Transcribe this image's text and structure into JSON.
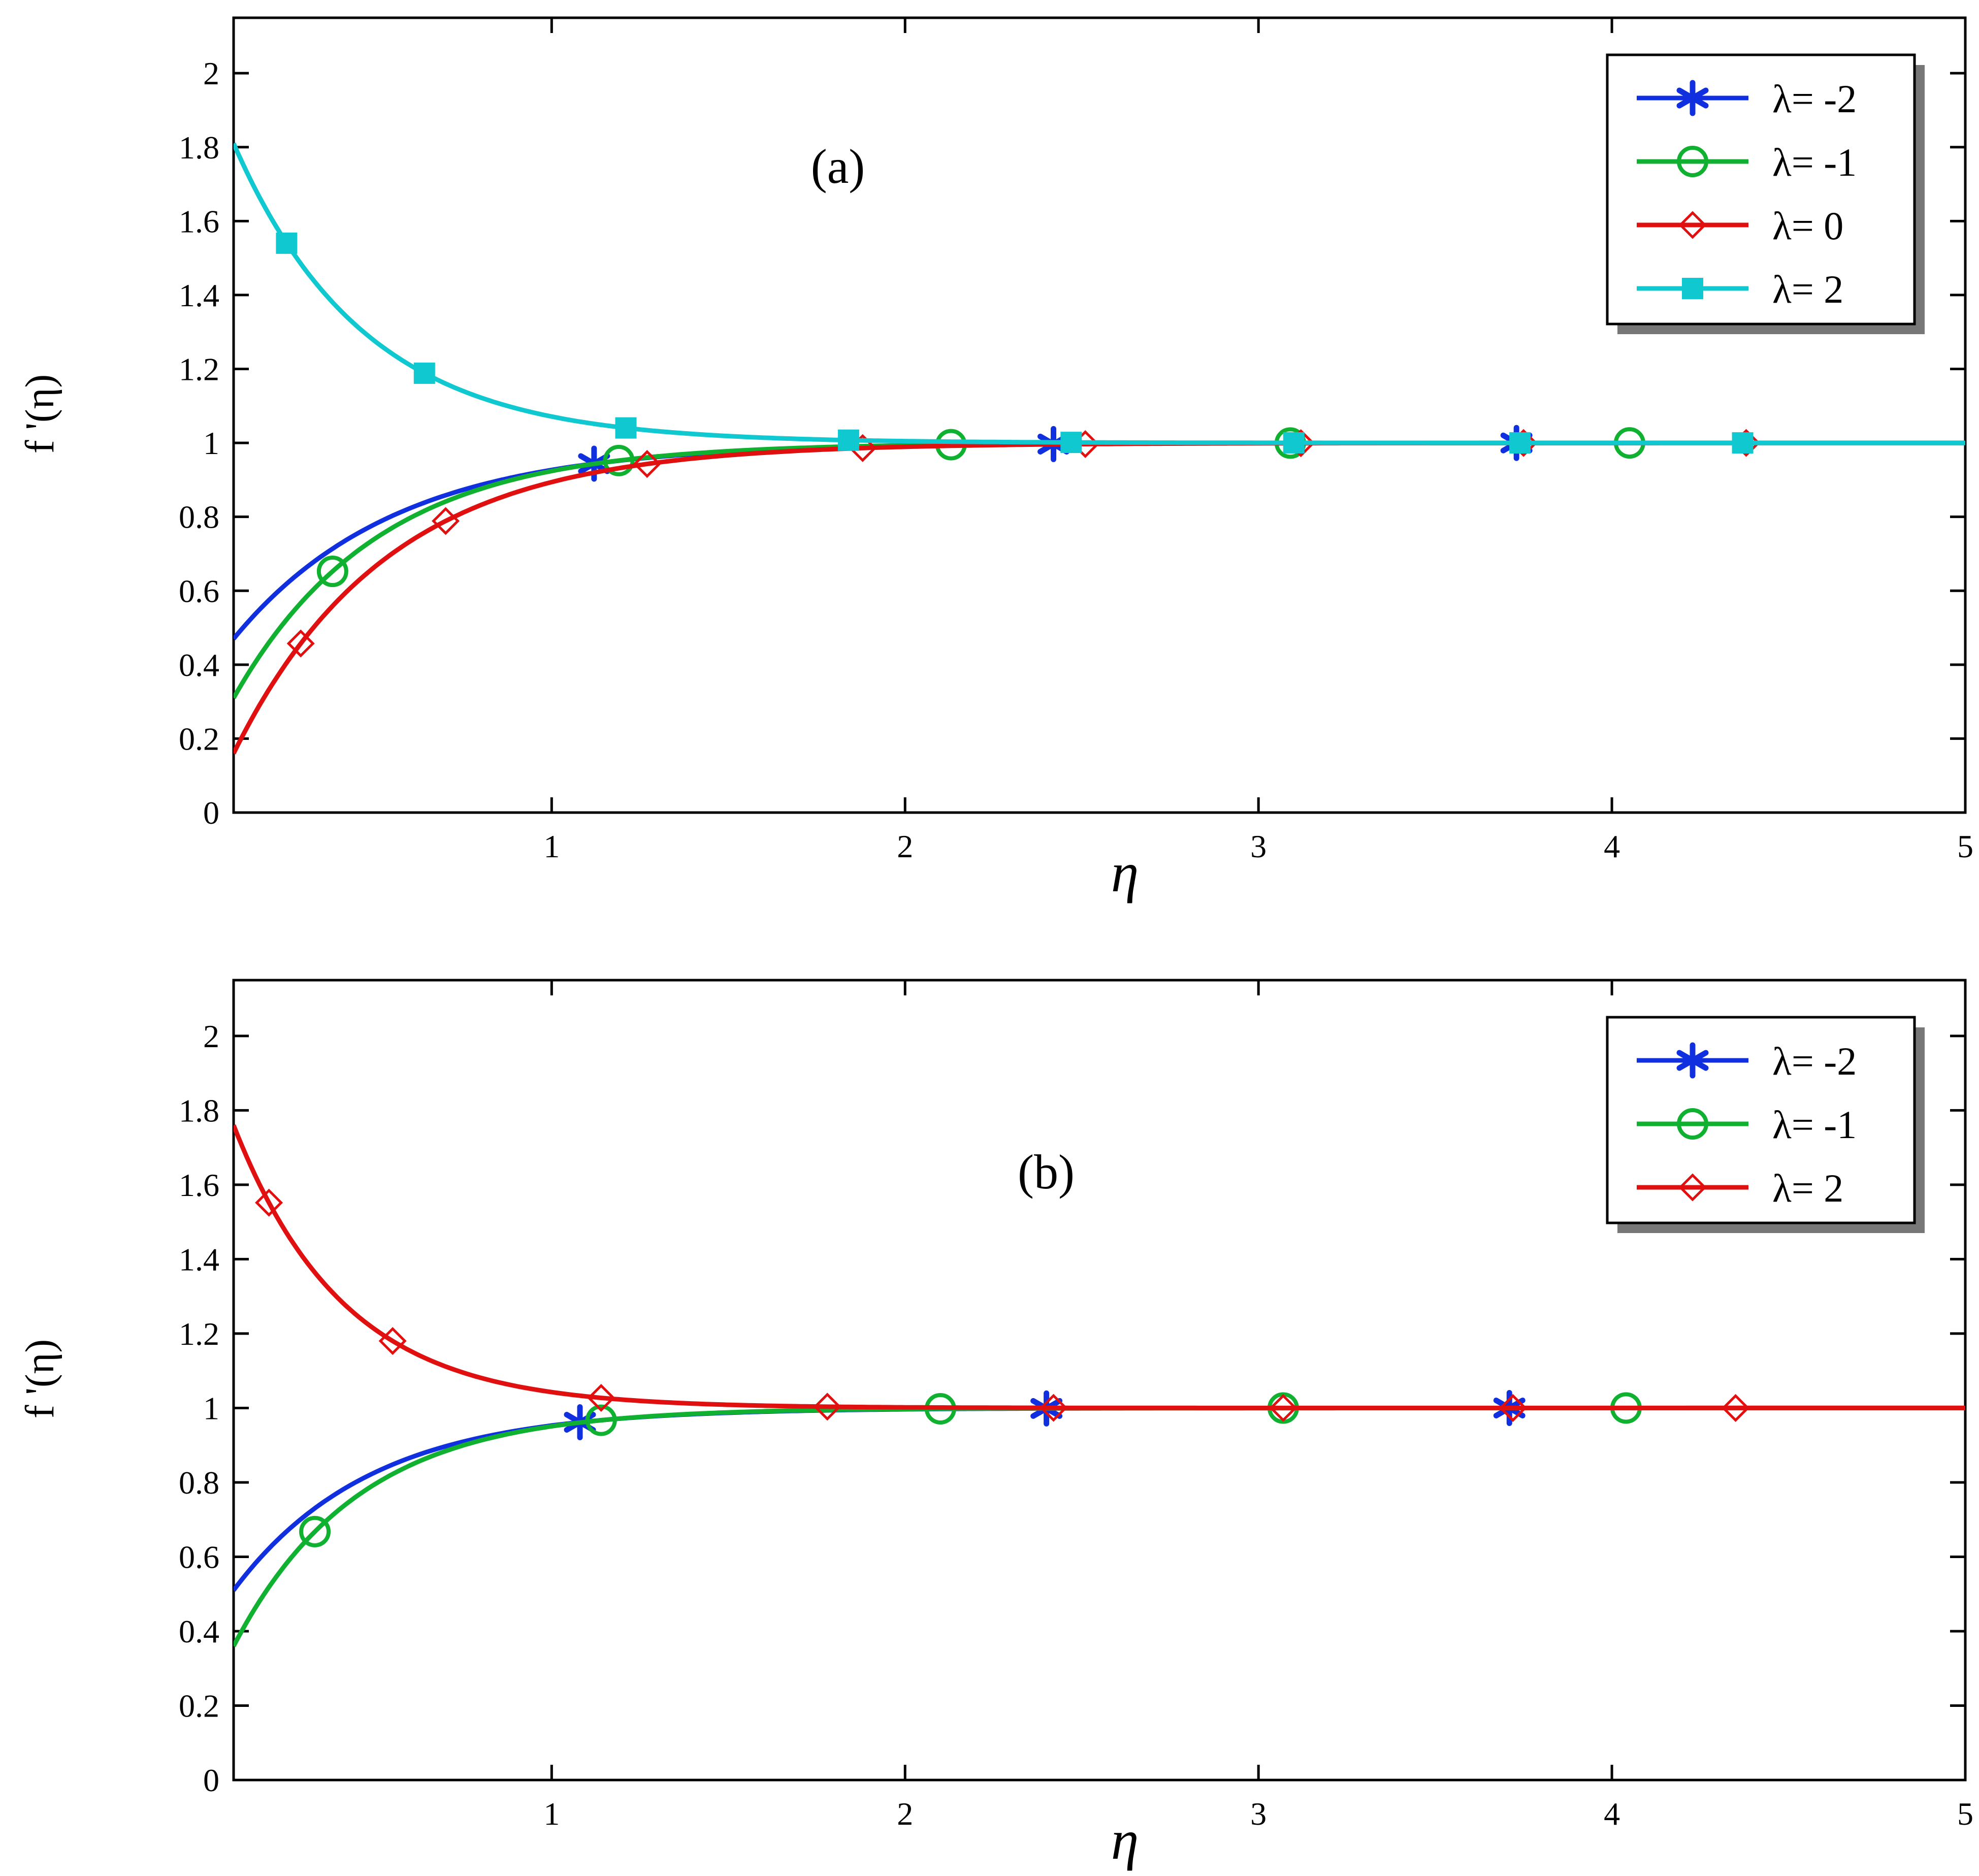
{
  "chart_data": [
    {
      "type": "line",
      "panel_label": "(a)",
      "xlabel": "η",
      "ylabel": "f '(η)",
      "xlim": [
        0.1,
        5.0
      ],
      "ylim": [
        0,
        2.15
      ],
      "xticks": [
        1,
        2,
        3,
        4,
        5
      ],
      "xtick_labels": [
        "1",
        "2",
        "3",
        "4",
        "5"
      ],
      "yticks": [
        0,
        0.2,
        0.4,
        0.6,
        0.8,
        1,
        1.2,
        1.4,
        1.6,
        1.8,
        2
      ],
      "ytick_labels": [
        "0",
        "0.2",
        "0.4",
        "0.6",
        "0.8",
        "1",
        "1.2",
        "1.4",
        "1.6",
        "1.8",
        "2"
      ],
      "grid": false,
      "legend_position": "top-right",
      "series": [
        {
          "name": "λ= -2",
          "color": "#1030e0",
          "marker": "asterisk",
          "f0": 0.47,
          "k": 2.2,
          "marker_x": [
            1.12,
            2.42,
            3.73
          ]
        },
        {
          "name": "λ= -1",
          "color": "#10b030",
          "marker": "circle",
          "f0": 0.31,
          "k": 2.45,
          "marker_x": [
            0.38,
            1.19,
            2.13,
            3.09,
            4.05
          ]
        },
        {
          "name": "λ= 0",
          "color": "#e01010",
          "marker": "diamond",
          "f0": 0.16,
          "k": 2.3,
          "marker_x": [
            0.29,
            0.7,
            1.27,
            1.88,
            2.51,
            3.12,
            3.75,
            4.38
          ]
        },
        {
          "name": "λ= 2",
          "color": "#10c8d0",
          "marker": "square",
          "f0": 1.81,
          "k": 2.7,
          "marker_x": [
            0.25,
            0.64,
            1.21,
            1.84,
            2.47,
            3.1,
            3.74,
            4.37
          ]
        }
      ]
    },
    {
      "type": "line",
      "panel_label": "(b)",
      "xlabel": "η",
      "ylabel": "f '(η)",
      "xlim": [
        0.1,
        5.0
      ],
      "ylim": [
        0,
        2.15
      ],
      "xticks": [
        1,
        2,
        3,
        4,
        5
      ],
      "xtick_labels": [
        "1",
        "2",
        "3",
        "4",
        "5"
      ],
      "yticks": [
        0,
        0.2,
        0.4,
        0.6,
        0.8,
        1,
        1.2,
        1.4,
        1.6,
        1.8,
        2
      ],
      "ytick_labels": [
        "0",
        "0.2",
        "0.4",
        "0.6",
        "0.8",
        "1",
        "1.2",
        "1.4",
        "1.6",
        "1.8",
        "2"
      ],
      "grid": false,
      "legend_position": "top-right",
      "series": [
        {
          "name": "λ= -2",
          "color": "#1030e0",
          "marker": "asterisk",
          "f0": 0.51,
          "k": 2.6,
          "marker_x": [
            1.08,
            2.4,
            3.71
          ]
        },
        {
          "name": "λ= -1",
          "color": "#10b030",
          "marker": "circle",
          "f0": 0.36,
          "k": 2.85,
          "marker_x": [
            0.33,
            1.14,
            2.1,
            3.07,
            4.04
          ]
        },
        {
          "name": "λ= 2",
          "color": "#e01010",
          "marker": "diamond",
          "f0": 1.76,
          "k": 3.2,
          "marker_x": [
            0.2,
            0.55,
            1.14,
            1.78,
            2.42,
            3.07,
            3.72,
            4.35
          ]
        }
      ]
    }
  ]
}
